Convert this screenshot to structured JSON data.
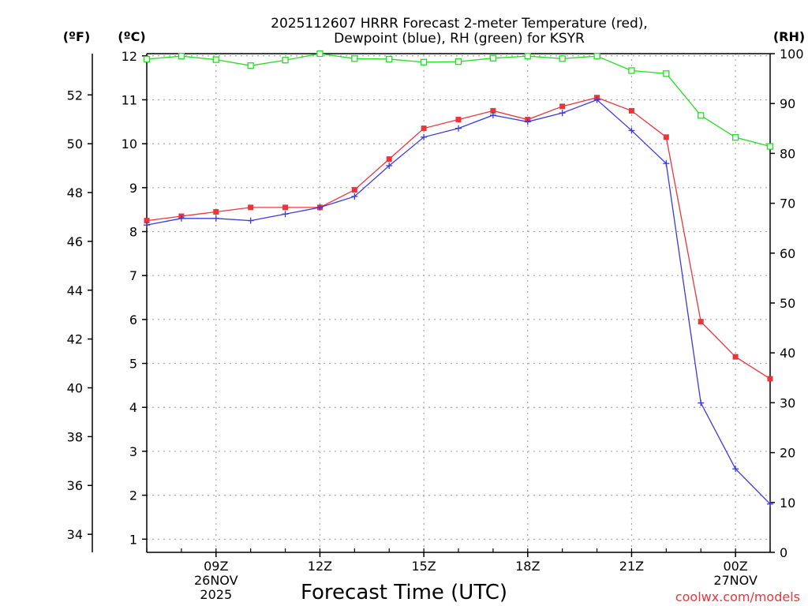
{
  "title_line1": "2025112607 HRRR Forecast 2-meter Temperature (red),",
  "title_line2": "Dewpoint (blue), RH (green) for KSYR",
  "unit_f": "(ºF)",
  "unit_c": "(ºC)",
  "unit_rh": "(RH)",
  "credit": "coolwx.com/models",
  "chart_data": {
    "type": "line",
    "xlabel": "Forecast Time (UTC)",
    "hours": [
      7,
      8,
      9,
      10,
      11,
      12,
      13,
      14,
      15,
      16,
      17,
      18,
      19,
      20,
      21,
      22,
      23,
      24,
      25
    ],
    "x_ticks": [
      {
        "hour": 9,
        "lines": [
          "09Z",
          "26NOV",
          "2025"
        ]
      },
      {
        "hour": 12,
        "lines": [
          "12Z"
        ]
      },
      {
        "hour": 15,
        "lines": [
          "15Z"
        ]
      },
      {
        "hour": 18,
        "lines": [
          "18Z"
        ]
      },
      {
        "hour": 21,
        "lines": [
          "21Z"
        ]
      },
      {
        "hour": 24,
        "lines": [
          "00Z",
          "27NOV"
        ]
      }
    ],
    "xlim": [
      7,
      25
    ],
    "ylim_c": [
      0.7,
      12.05
    ],
    "yticks_c": [
      "1",
      "2",
      "3",
      "4",
      "5",
      "6",
      "7",
      "8",
      "9",
      "10",
      "11",
      "12"
    ],
    "yticks_f": [
      "34",
      "36",
      "38",
      "40",
      "42",
      "44",
      "46",
      "48",
      "50",
      "52"
    ],
    "yticks_rh": [
      "0",
      "10",
      "20",
      "30",
      "40",
      "50",
      "60",
      "70",
      "80",
      "90",
      "100"
    ],
    "rh_lim": [
      0,
      100
    ],
    "series": [
      {
        "name": "Temperature",
        "color": "#e8363c",
        "marker": "filled-square",
        "values": [
          8.25,
          8.35,
          8.45,
          8.55,
          8.55,
          8.55,
          8.95,
          9.65,
          10.35,
          10.55,
          10.75,
          10.55,
          10.85,
          11.05,
          10.75,
          10.15,
          5.95,
          5.15,
          4.65
        ]
      },
      {
        "name": "Dewpoint",
        "color": "#3a3ae0",
        "marker": "plus",
        "values": [
          8.15,
          8.3,
          8.3,
          8.25,
          8.4,
          8.55,
          8.8,
          9.5,
          10.15,
          10.35,
          10.65,
          10.5,
          10.7,
          11.0,
          10.3,
          9.55,
          4.1,
          2.6,
          1.8
        ]
      },
      {
        "name": "RH",
        "color": "#22dd22",
        "marker": "open-square",
        "axis": "rh",
        "values": [
          98.9,
          99.5,
          98.8,
          97.6,
          98.7,
          100,
          99,
          98.9,
          98.3,
          98.4,
          99.1,
          99.5,
          99,
          99.5,
          96.6,
          96.0,
          87.6,
          83.2,
          81.4
        ]
      }
    ]
  }
}
